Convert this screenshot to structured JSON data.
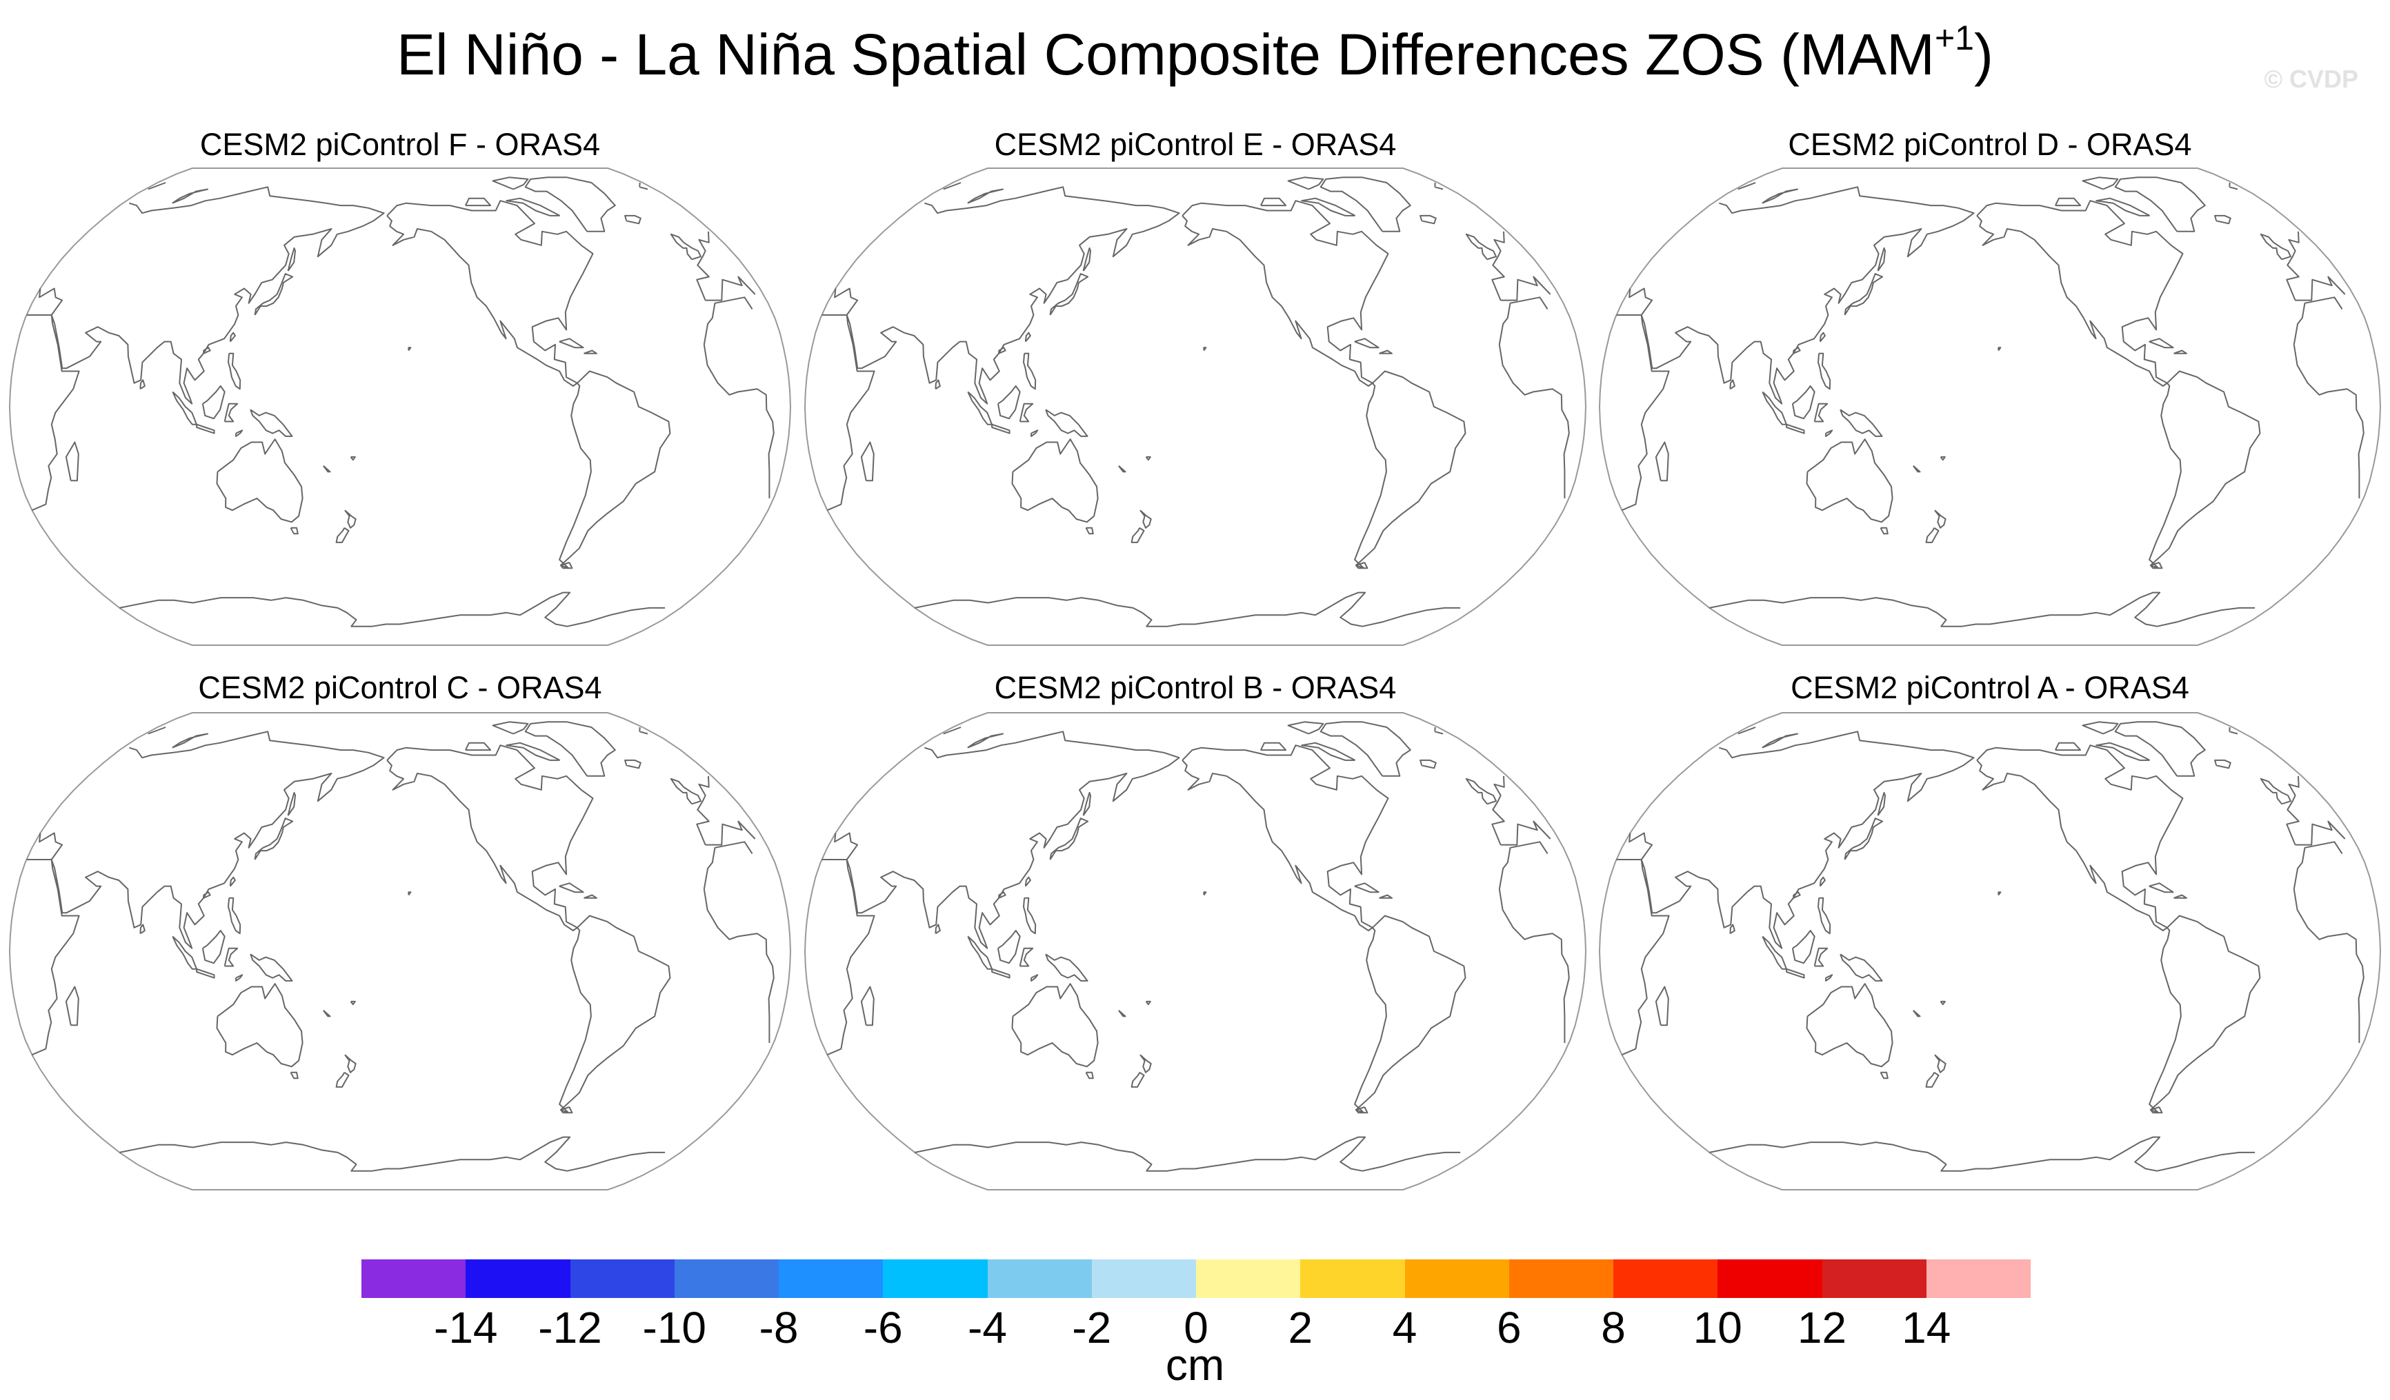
{
  "figure": {
    "title_main": "El Niño - La Niña Spatial Composite Differences ZOS (MAM",
    "title_sup": "+1",
    "title_close": ")",
    "watermark": "© CVDP"
  },
  "panels": [
    {
      "label": "CESM2 piControl F - ORAS4"
    },
    {
      "label": "CESM2 piControl E - ORAS4"
    },
    {
      "label": "CESM2 piControl D - ORAS4"
    },
    {
      "label": "CESM2 piControl C - ORAS4"
    },
    {
      "label": "CESM2 piControl B - ORAS4"
    },
    {
      "label": "CESM2 piControl A - ORAS4"
    }
  ],
  "colorbar": {
    "units": "cm",
    "tick_labels": [
      "-14",
      "-12",
      "-10",
      "-8",
      "-6",
      "-4",
      "-2",
      "0",
      "2",
      "4",
      "6",
      "8",
      "10",
      "12",
      "14"
    ],
    "colors": [
      "#8a2be2",
      "#1e10f5",
      "#2f46e6",
      "#3a78e6",
      "#1e90ff",
      "#00bfff",
      "#7ecbf0",
      "#b4e0f5",
      "#fff699",
      "#ffd42a",
      "#ffa500",
      "#ff7700",
      "#ff3000",
      "#ee0000",
      "#d42020",
      "#ffb0b0"
    ]
  },
  "map_style": {
    "projection": "Robinson, centered on Pacific",
    "coastline_color": "#666666",
    "outline_color": "#999999",
    "fill": "none"
  }
}
